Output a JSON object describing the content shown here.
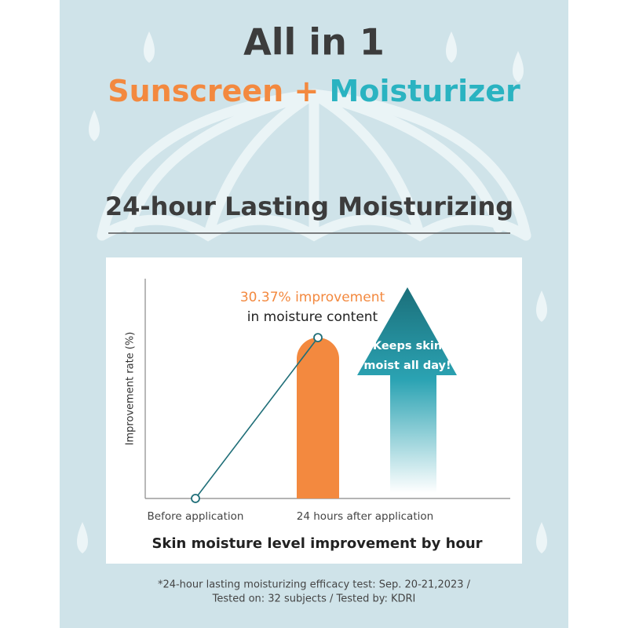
{
  "header": {
    "title": "All in 1",
    "subtitle_left": "Sunscreen",
    "subtitle_plus": "+",
    "subtitle_right": "Moisturizer"
  },
  "section_title": "24-hour  Lasting Moisturizing",
  "chart_data": {
    "type": "bar",
    "title": "Skin moisture level improvement by hour",
    "y_label": "Improvement rate (%)",
    "categories": [
      "Before application",
      "24 hours after application"
    ],
    "values": [
      0,
      30.37
    ],
    "color": "#f3893f",
    "line_color": "#1f6e78",
    "ylim": [
      0,
      41.5
    ],
    "annotation": [
      "30.37% improvement",
      "in moisture content"
    ],
    "arrow_text": [
      "Keeps skin",
      "moist all day!"
    ]
  },
  "footnote": [
    "*24-hour lasting moisturizing efficacy test: Sep. 20-21,2023 /",
    "Tested on: 32 subjects / Tested by: KDRI"
  ]
}
